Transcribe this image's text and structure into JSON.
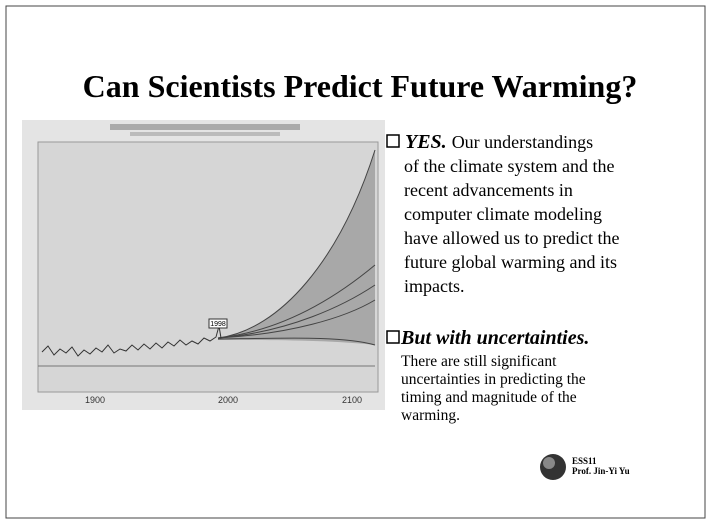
{
  "title": "Can Scientists Predict Future Warming?",
  "bullets": [
    {
      "lead": "YES.",
      "lines": [
        "Our understandings",
        "of the climate system and the",
        "recent advancements in",
        "computer climate modeling",
        "have allowed us to predict the",
        "future global warming and its",
        "impacts."
      ]
    },
    {
      "lead": "But with uncertainties.",
      "lines": [
        "There are still significant",
        "uncertainties in predicting the",
        "timing and magnitude of the",
        "warming."
      ]
    }
  ],
  "figure": {
    "marker": "1998",
    "axis_labels": [
      "1900",
      "2000",
      "2100"
    ]
  },
  "footer": {
    "course": "ESS11",
    "author": "Prof. Jin-Yi Yu"
  }
}
